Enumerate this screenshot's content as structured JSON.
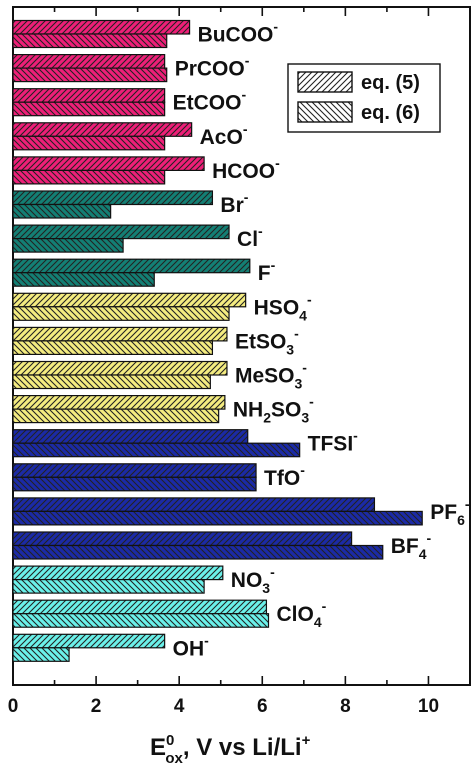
{
  "chart_data": {
    "type": "bar",
    "orientation": "horizontal",
    "categories": [
      {
        "base": "BuCOO",
        "sub": "",
        "sup": "-"
      },
      {
        "base": "PrCOO",
        "sub": "",
        "sup": "-"
      },
      {
        "base": "EtCOO",
        "sub": "",
        "sup": "-"
      },
      {
        "base": "AcO",
        "sub": "",
        "sup": "-"
      },
      {
        "base": "HCOO",
        "sub": "",
        "sup": "-"
      },
      {
        "base": "Br",
        "sub": "",
        "sup": "-"
      },
      {
        "base": "Cl",
        "sub": "",
        "sup": "-"
      },
      {
        "base": "F",
        "sub": "",
        "sup": "-"
      },
      {
        "base": "HSO",
        "sub": "4",
        "sup": "-"
      },
      {
        "base": "EtSO",
        "sub": "3",
        "sup": "-"
      },
      {
        "base": "MeSO",
        "sub": "3",
        "sup": "-"
      },
      {
        "base": "NH",
        "sub": "2",
        "mid": "SO",
        "sub2": "3",
        "sup": "-"
      },
      {
        "base": "TFSI",
        "sub": "",
        "sup": "-"
      },
      {
        "base": "TfO",
        "sub": "",
        "sup": "-"
      },
      {
        "base": "PF",
        "sub": "6",
        "sup": "-"
      },
      {
        "base": "BF",
        "sub": "4",
        "sup": "-"
      },
      {
        "base": "NO",
        "sub": "3",
        "sup": "-"
      },
      {
        "base": "ClO",
        "sub": "4",
        "sup": "-"
      },
      {
        "base": "OH",
        "sub": "",
        "sup": "-"
      }
    ],
    "series": [
      {
        "name": "eq. (5)",
        "pattern": "forward-hatch",
        "values": [
          4.25,
          3.65,
          3.65,
          4.3,
          4.6,
          4.8,
          5.2,
          5.7,
          5.6,
          5.15,
          5.15,
          5.1,
          5.65,
          5.85,
          8.7,
          8.15,
          5.05,
          6.1,
          3.65
        ]
      },
      {
        "name": "eq. (6)",
        "pattern": "back-hatch",
        "values": [
          3.7,
          3.7,
          3.65,
          3.65,
          3.65,
          2.35,
          2.65,
          3.4,
          5.2,
          4.8,
          4.75,
          4.95,
          6.9,
          5.85,
          9.85,
          8.9,
          4.6,
          6.15,
          1.35
        ]
      }
    ],
    "groups": [
      {
        "color": "#ee1f78",
        "from": 0,
        "to": 4
      },
      {
        "color": "#137f74",
        "from": 5,
        "to": 7
      },
      {
        "color": "#f4ec80",
        "from": 8,
        "to": 11
      },
      {
        "color": "#1b2aa6",
        "from": 12,
        "to": 15
      },
      {
        "color": "#6bf1ea",
        "from": 16,
        "to": 18
      }
    ],
    "xlim": [
      0,
      11
    ],
    "xticks": [
      0,
      2,
      4,
      6,
      8,
      10
    ],
    "xlabel": {
      "E": "E",
      "sup": "0",
      "sub": "ox",
      "rest": ", V vs Li/Li",
      "rest_sup": "+"
    },
    "legend_placement": "top-right",
    "grid": false
  }
}
